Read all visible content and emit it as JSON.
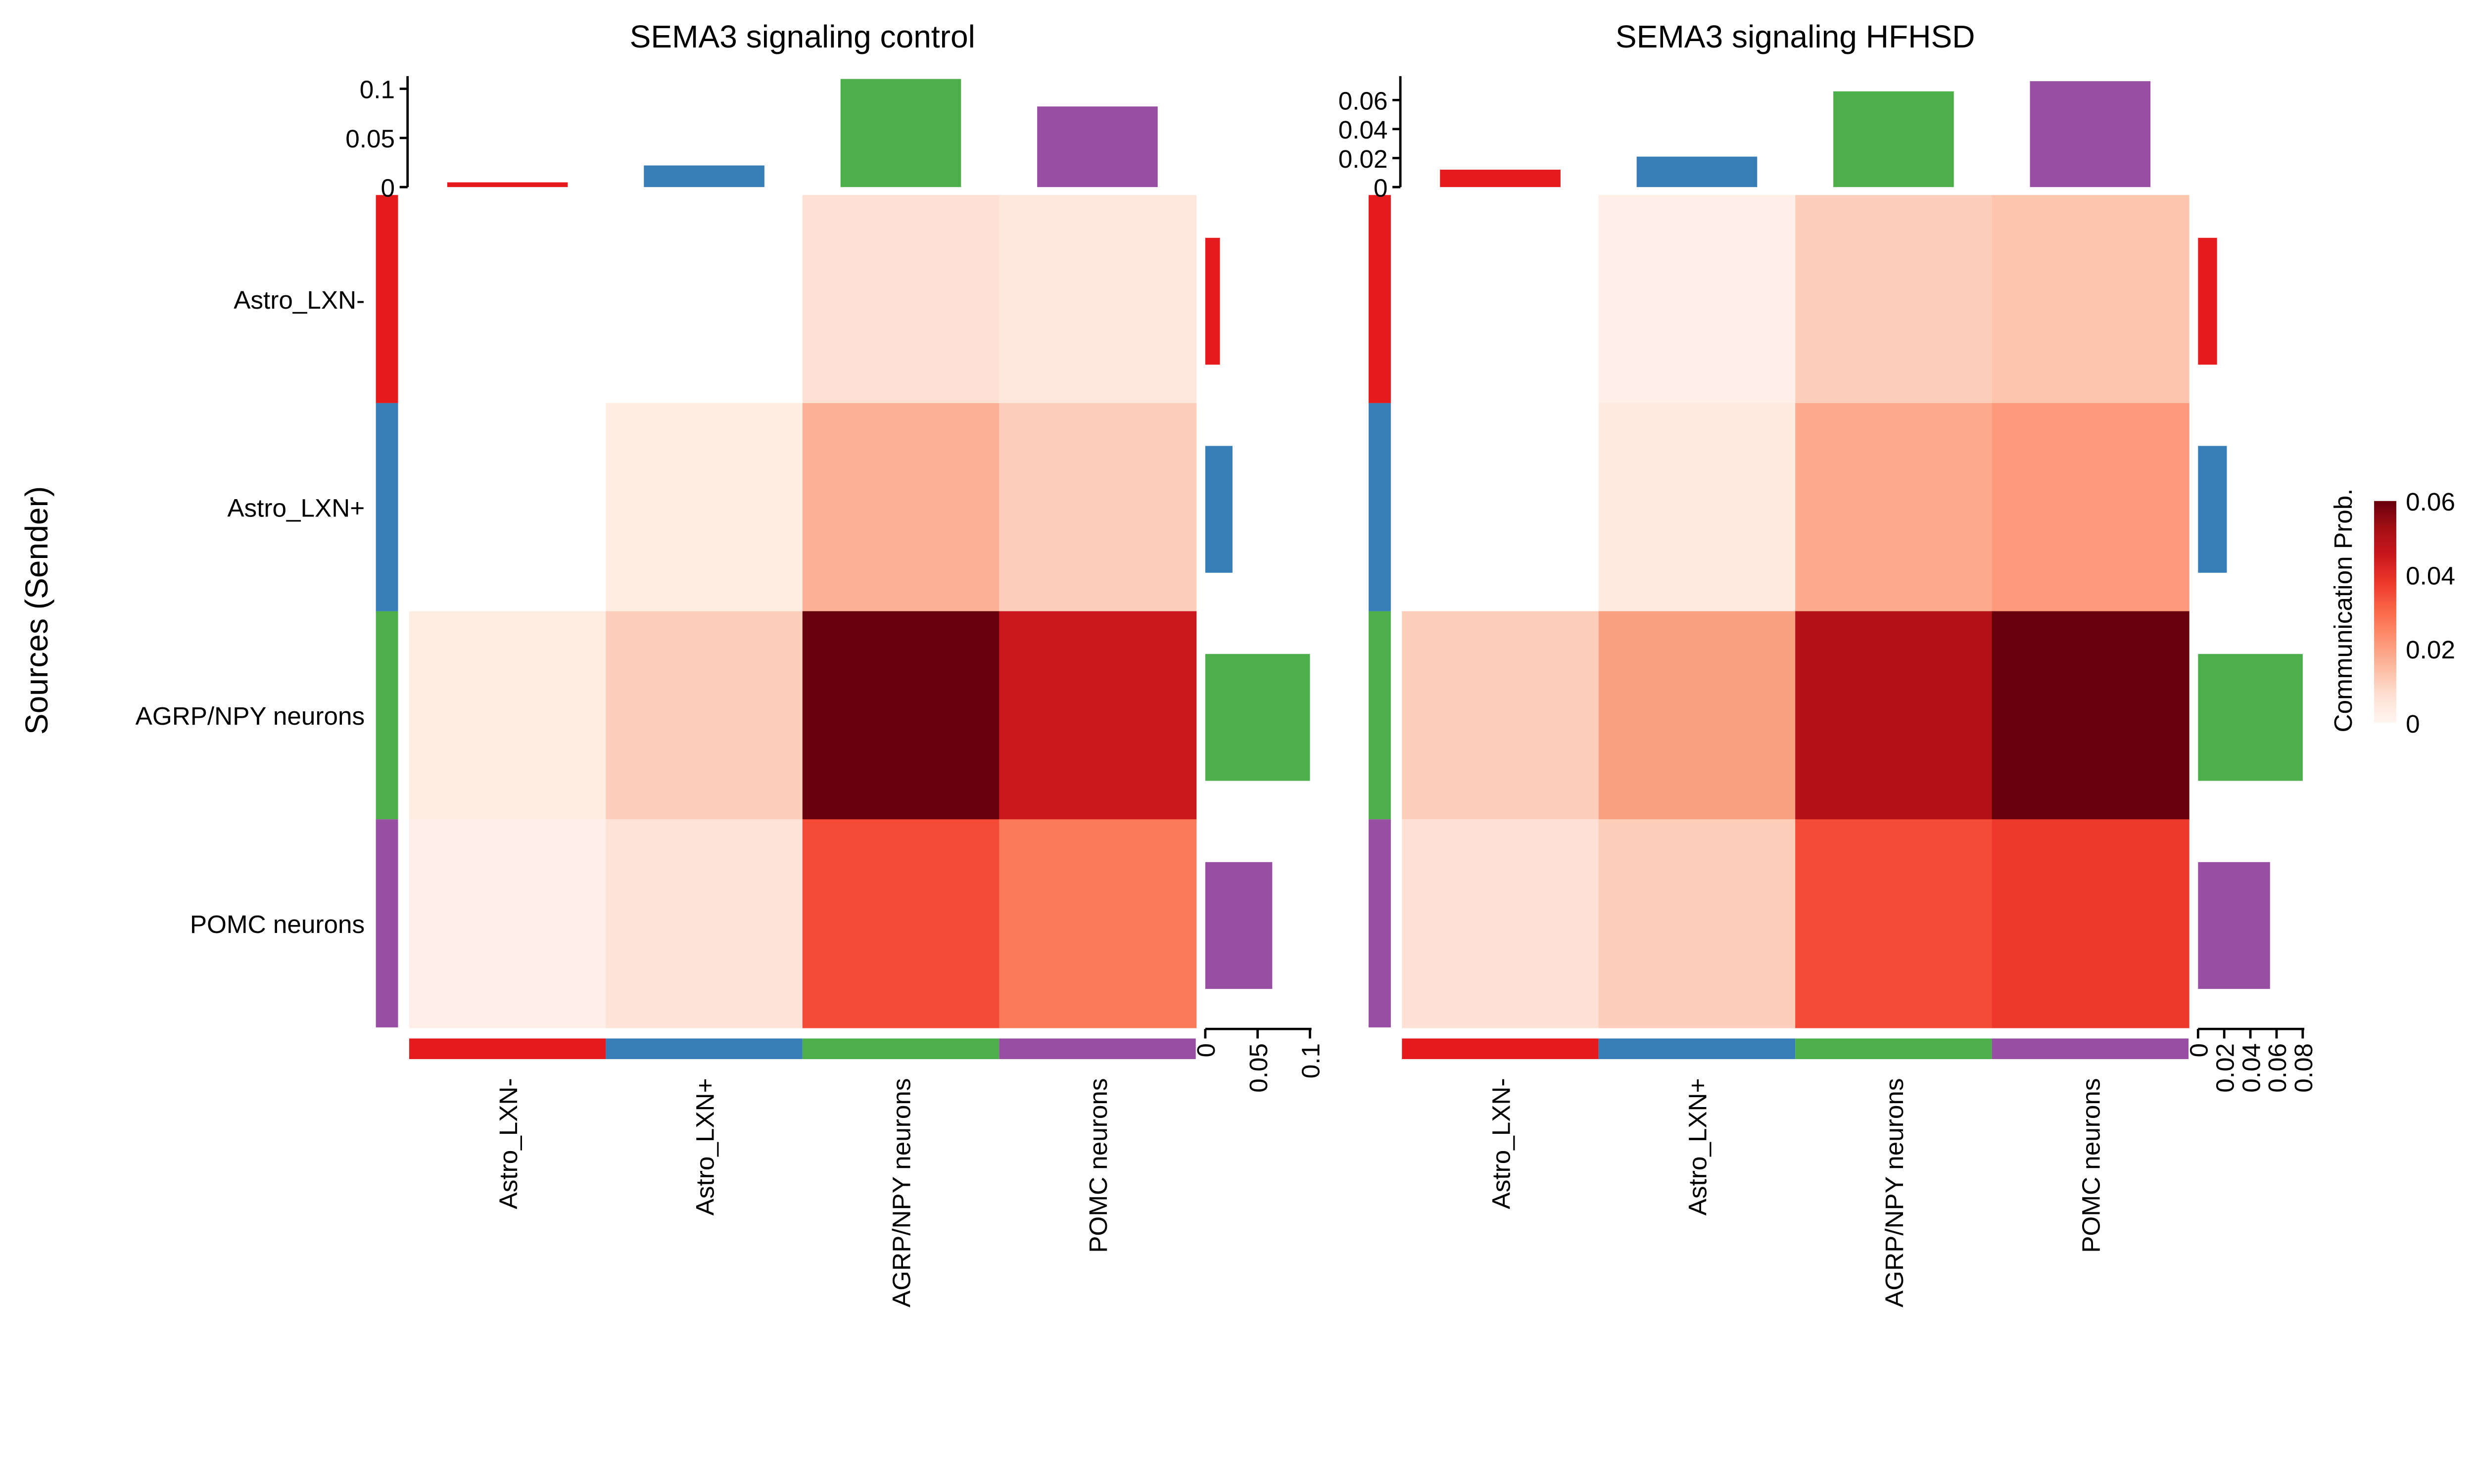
{
  "chart_data": [
    {
      "type": "heatmap",
      "title": "SEMA3 signaling  control",
      "ylabel": "Sources (Sender)",
      "rows": [
        "Astro_LXN-",
        "Astro_LXN+",
        "AGRP/NPY neurons",
        "POMC neurons"
      ],
      "columns": [
        "Astro_LXN-",
        "Astro_LXN+",
        "AGRP/NPY neurons",
        "POMC neurons"
      ],
      "values": [
        [
          null,
          null,
          0.007,
          0.005
        ],
        [
          null,
          0.003,
          0.017,
          0.011
        ],
        [
          0.003,
          0.011,
          0.06,
          0.045
        ],
        [
          0.002,
          0.006,
          0.035,
          0.027
        ]
      ],
      "top_bars": {
        "values": [
          0.003,
          0.022,
          0.11,
          0.082
        ],
        "ylim": [
          0,
          0.11
        ],
        "ticks": [
          "0",
          "0.05",
          "0.1"
        ],
        "tick_values": [
          0,
          0.05,
          0.1
        ]
      },
      "right_bars": {
        "values": [
          0.014,
          0.026,
          0.1,
          0.064
        ],
        "xlim": [
          0,
          0.1
        ],
        "ticks": [
          "0",
          "0.05",
          "0.1"
        ],
        "tick_values": [
          0,
          0.05,
          0.1
        ]
      }
    },
    {
      "type": "heatmap",
      "title": "SEMA3 signaling  HFHSD",
      "rows": [
        "Astro_LXN-",
        "Astro_LXN+",
        "AGRP/NPY neurons",
        "POMC neurons"
      ],
      "columns": [
        "Astro_LXN-",
        "Astro_LXN+",
        "AGRP/NPY neurons",
        "POMC neurons"
      ],
      "values": [
        [
          null,
          0.002,
          0.011,
          0.013
        ],
        [
          null,
          0.004,
          0.018,
          0.021
        ],
        [
          0.011,
          0.02,
          0.05,
          0.06
        ],
        [
          0.007,
          0.011,
          0.035,
          0.038
        ]
      ],
      "top_bars": {
        "values": [
          0.012,
          0.021,
          0.066,
          0.073
        ],
        "ylim": [
          0,
          0.073
        ],
        "ticks": [
          "0",
          "0.02",
          "0.04",
          "0.06"
        ],
        "tick_values": [
          0,
          0.02,
          0.04,
          0.06
        ]
      },
      "right_bars": {
        "values": [
          0.0145,
          0.022,
          0.08,
          0.055
        ],
        "xlim": [
          0,
          0.08
        ],
        "ticks": [
          "0",
          "0.02",
          "0.04",
          "0.06",
          "0.08"
        ],
        "tick_values": [
          0,
          0.02,
          0.04,
          0.06,
          0.08
        ]
      }
    }
  ],
  "legend": {
    "title": "Communication Prob.",
    "ticks": [
      "0",
      "0.02",
      "0.04",
      "0.06"
    ],
    "tick_values": [
      0,
      0.02,
      0.04,
      0.06
    ],
    "range": [
      0,
      0.06
    ],
    "palette": [
      "#FFF5F0",
      "#FEE0D2",
      "#FCBBA1",
      "#FC9272",
      "#FB6A4A",
      "#EF3B2C",
      "#CB181D",
      "#A50F15",
      "#67000D"
    ]
  },
  "group_colors": [
    "#E41A1C",
    "#377EB8",
    "#4DAF4A",
    "#984EA3"
  ]
}
